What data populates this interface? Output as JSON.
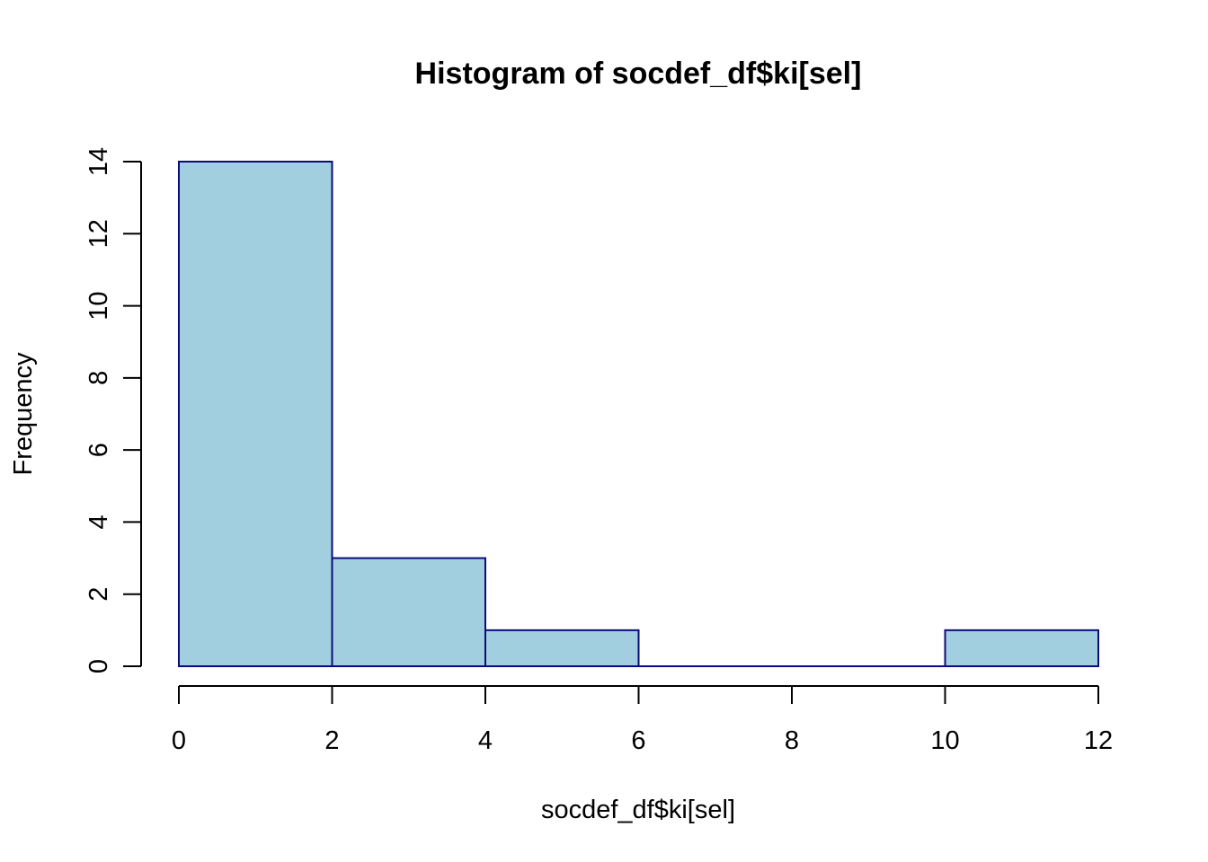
{
  "chart_data": {
    "type": "bar",
    "title": "Histogram of socdef_df$ki[sel]",
    "xlabel": "socdef_df$ki[sel]",
    "ylabel": "Frequency",
    "bins": [
      {
        "start": 0,
        "end": 2,
        "count": 14
      },
      {
        "start": 2,
        "end": 4,
        "count": 3
      },
      {
        "start": 4,
        "end": 6,
        "count": 1
      },
      {
        "start": 6,
        "end": 8,
        "count": 0
      },
      {
        "start": 8,
        "end": 10,
        "count": 0
      },
      {
        "start": 10,
        "end": 12,
        "count": 1
      }
    ],
    "xlim": [
      0,
      12
    ],
    "ylim": [
      0,
      14
    ],
    "x_ticks": [
      0,
      2,
      4,
      6,
      8,
      10,
      12
    ],
    "y_ticks": [
      0,
      2,
      4,
      6,
      8,
      10,
      12,
      14
    ],
    "x_tick_labels": [
      "0",
      "2",
      "4",
      "6",
      "8",
      "10",
      "12"
    ],
    "y_tick_labels": [
      "0",
      "2",
      "4",
      "6",
      "8",
      "10",
      "12",
      "14"
    ],
    "grid": false,
    "bar_fill": "#a1cfe0",
    "bar_stroke": "#0b0b7a"
  }
}
